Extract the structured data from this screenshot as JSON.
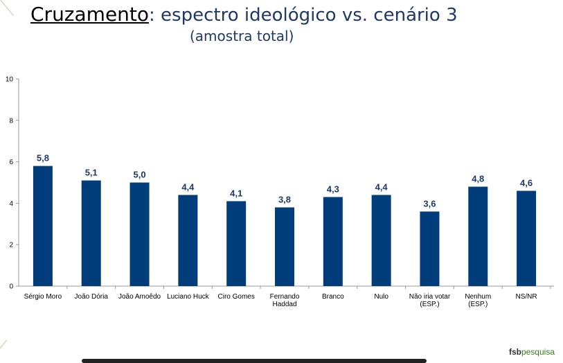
{
  "header": {
    "title_prefix": "Cruzamento",
    "title_rest": ": espectro ideológico vs. cenário 3",
    "subtitle": "(amostra total)"
  },
  "brand": {
    "part1": "fsb",
    "part2": "pesquisa"
  },
  "colors": {
    "bar": "#003d7a",
    "label": "#1f3864",
    "axis": "#999999",
    "tick_text": "#000000"
  },
  "chart_data": {
    "type": "bar",
    "title": "",
    "xlabel": "",
    "ylabel": "",
    "ylim": [
      0,
      10
    ],
    "yticks": [
      "0",
      "2",
      "4",
      "6",
      "8",
      "10"
    ],
    "grid": false,
    "categories": [
      "Sérgio Moro",
      "João Dória",
      "João Amoêdo",
      "Luciano Huck",
      "Ciro Gomes",
      "Fernando\nHaddad",
      "Branco",
      "Nulo",
      "Não iria votar\n(ESP.)",
      "Nenhum\n(ESP.)",
      "NS/NR"
    ],
    "values": [
      5.8,
      5.1,
      5.0,
      4.4,
      4.1,
      3.8,
      4.3,
      4.4,
      3.6,
      4.8,
      4.6
    ],
    "value_labels": [
      "5,8",
      "5,1",
      "5,0",
      "4,4",
      "4,1",
      "3,8",
      "4,3",
      "4,4",
      "3,6",
      "4,8",
      "4,6"
    ]
  }
}
